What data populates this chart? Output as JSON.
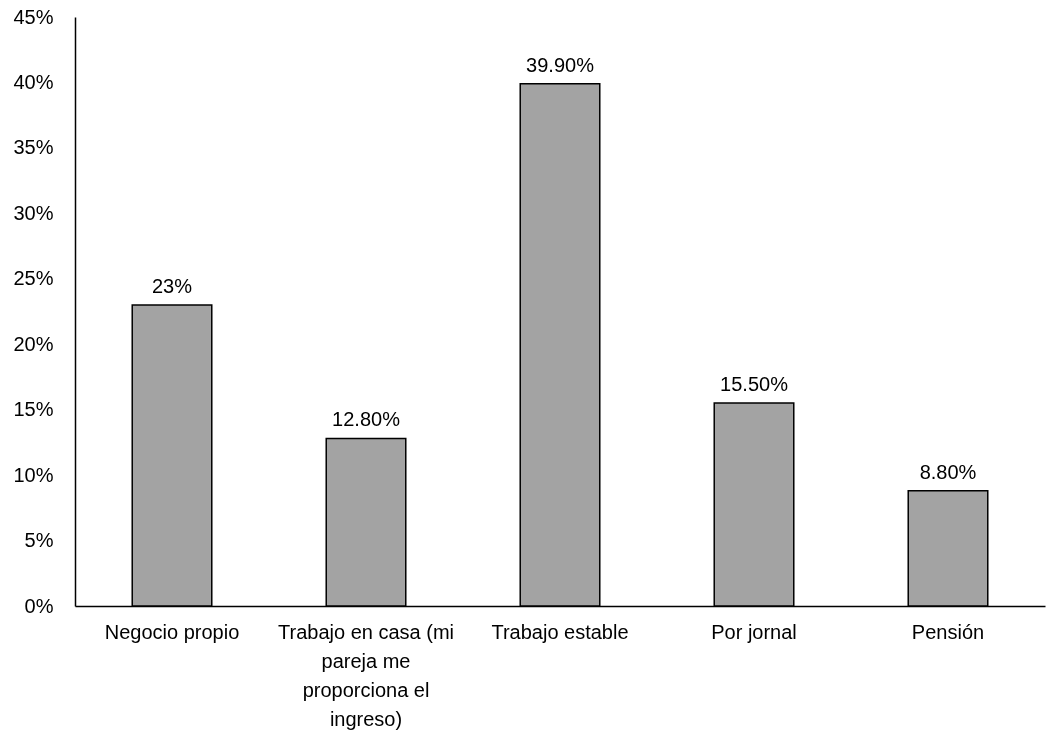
{
  "chart_data": {
    "type": "bar",
    "categories": [
      "Negocio propio",
      "Trabajo en casa (mi pareja me proporciona el ingreso)",
      "Trabajo estable",
      "Por jornal",
      "Pensión"
    ],
    "values": [
      23,
      12.8,
      39.9,
      15.5,
      8.8
    ],
    "value_labels": [
      "23%",
      "12.80%",
      "39.90%",
      "15.50%",
      "8.80%"
    ],
    "color": "#a3a3a3",
    "ylim": [
      0,
      45
    ],
    "yticks": [
      {
        "value": 0,
        "label": "0%"
      },
      {
        "value": 5,
        "label": "5%"
      },
      {
        "value": 10,
        "label": "10%"
      },
      {
        "value": 15,
        "label": "15%"
      },
      {
        "value": 20,
        "label": "20%"
      },
      {
        "value": 25,
        "label": "25%"
      },
      {
        "value": 30,
        "label": "30%"
      },
      {
        "value": 35,
        "label": "35%"
      },
      {
        "value": 40,
        "label": "40%"
      },
      {
        "value": 45,
        "label": "45%"
      }
    ],
    "grid": false
  }
}
